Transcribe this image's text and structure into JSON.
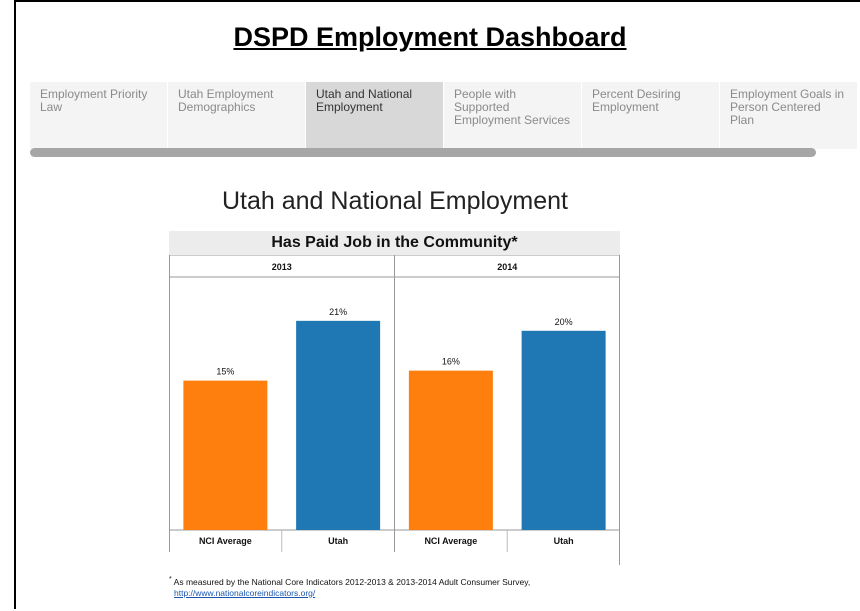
{
  "header": {
    "title": "DSPD Employment Dashboard"
  },
  "tabs": [
    {
      "label": "Employment Priority Law"
    },
    {
      "label": "Utah Employment Demographics"
    },
    {
      "label": "Utah and National Employment"
    },
    {
      "label": "People with Supported Employment Services"
    },
    {
      "label": "Percent Desiring Employment"
    },
    {
      "label": "Employment Goals in Person Centered Plan"
    }
  ],
  "active_tab": 2,
  "section": {
    "title": "Utah and National Employment"
  },
  "chart_data": {
    "type": "bar",
    "title": "Has Paid Job in the Community*",
    "panels": [
      {
        "label": "2013",
        "categories": [
          "NCI Average",
          "Utah"
        ],
        "values": [
          15,
          21
        ],
        "value_labels": [
          "15%",
          "21%"
        ]
      },
      {
        "label": "2014",
        "categories": [
          "NCI Average",
          "Utah"
        ],
        "values": [
          16,
          20
        ],
        "value_labels": [
          "16%",
          "20%"
        ]
      }
    ],
    "bar_colors": [
      "#ff7f0e",
      "#1f77b4"
    ],
    "ylim": [
      0,
      25
    ],
    "grid": false,
    "xlabel": "",
    "ylabel": ""
  },
  "footnote": {
    "marker": "*",
    "text": "As measured by the National Core Indicators 2012-2013 & 2013-2014 Adult Consumer Survey,",
    "link": "http://www.nationalcoreindicators.org/"
  }
}
